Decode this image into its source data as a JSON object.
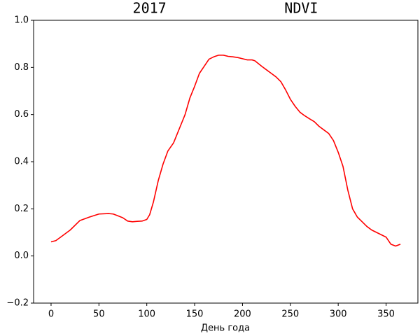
{
  "chart_data": {
    "type": "line",
    "title": "2017              NDVI",
    "x_label": "День года",
    "x": [
      0,
      5,
      10,
      20,
      30,
      40,
      50,
      60,
      65,
      70,
      75,
      80,
      85,
      90,
      95,
      100,
      103,
      107,
      112,
      117,
      122,
      128,
      135,
      140,
      145,
      150,
      155,
      160,
      165,
      170,
      175,
      180,
      185,
      190,
      195,
      200,
      205,
      210,
      213,
      220,
      225,
      230,
      235,
      240,
      245,
      250,
      255,
      260,
      265,
      270,
      275,
      280,
      285,
      290,
      295,
      300,
      305,
      310,
      315,
      320,
      325,
      330,
      335,
      340,
      345,
      350,
      355,
      360,
      365
    ],
    "series": [
      {
        "color": "#ff0000",
        "values": [
          0.06,
          0.065,
          0.08,
          0.11,
          0.15,
          0.165,
          0.178,
          0.18,
          0.178,
          0.17,
          0.162,
          0.148,
          0.145,
          0.147,
          0.148,
          0.155,
          0.175,
          0.23,
          0.32,
          0.39,
          0.445,
          0.48,
          0.55,
          0.6,
          0.67,
          0.72,
          0.775,
          0.805,
          0.835,
          0.845,
          0.852,
          0.852,
          0.847,
          0.845,
          0.842,
          0.837,
          0.832,
          0.832,
          0.828,
          0.805,
          0.79,
          0.775,
          0.76,
          0.74,
          0.705,
          0.665,
          0.635,
          0.61,
          0.595,
          0.582,
          0.57,
          0.55,
          0.535,
          0.52,
          0.49,
          0.44,
          0.38,
          0.28,
          0.2,
          0.165,
          0.145,
          0.125,
          0.11,
          0.1,
          0.09,
          0.08,
          0.05,
          0.042,
          0.05
        ]
      }
    ],
    "xlim": [
      -18.25,
      383.25
    ],
    "ylim": [
      -0.2,
      1.0
    ],
    "xticks": [
      0,
      50,
      100,
      150,
      200,
      250,
      300,
      350
    ],
    "yticks": [
      {
        "value": -0.2,
        "label": "−0.2"
      },
      {
        "value": 0,
        "label": "0.0"
      },
      {
        "value": 0.2,
        "label": "0.2"
      },
      {
        "value": 0.4,
        "label": "0.4"
      },
      {
        "value": 0.6,
        "label": "0.6"
      },
      {
        "value": 0.8,
        "label": "0.8"
      },
      {
        "value": 1.0,
        "label": "1.0"
      }
    ]
  }
}
